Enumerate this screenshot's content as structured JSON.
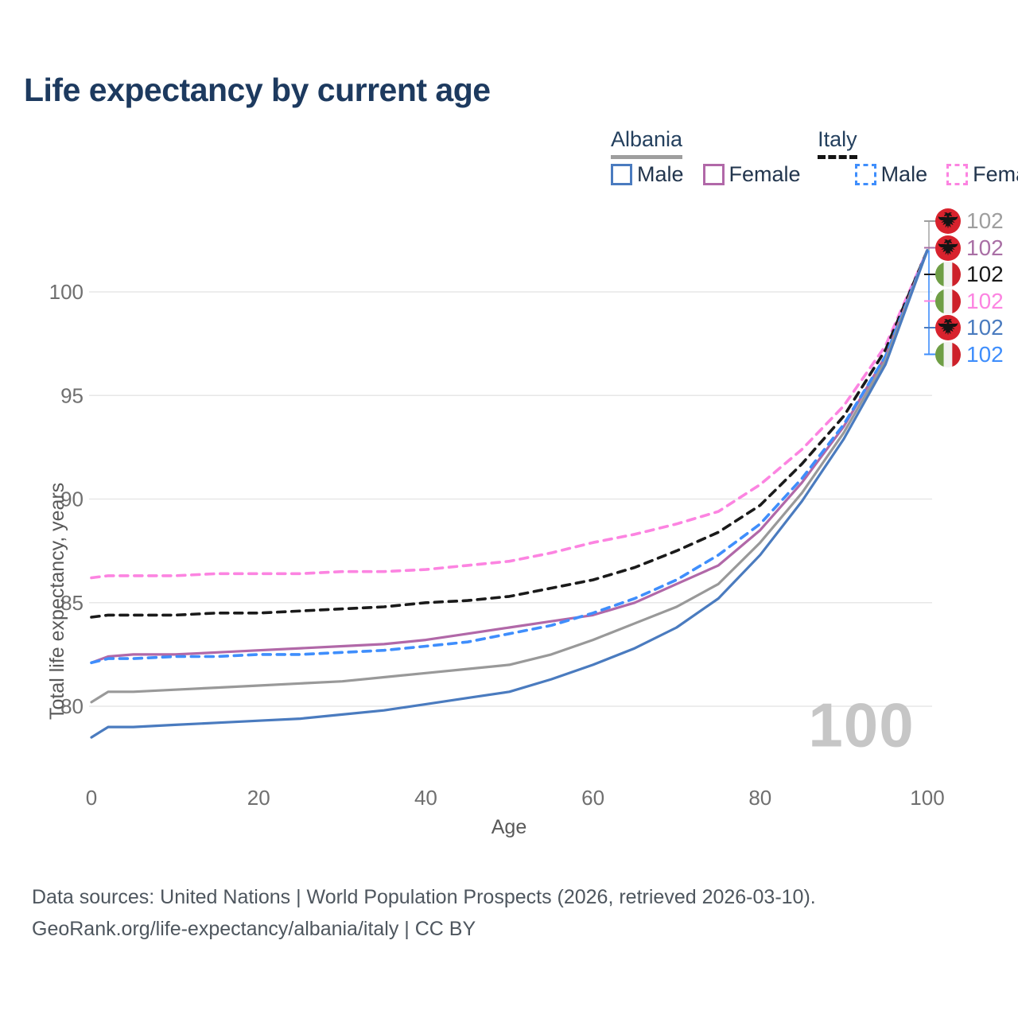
{
  "title": "Life expectancy by current age",
  "legend": {
    "groups": [
      {
        "label": "Albania",
        "line_style": "solid",
        "underline_color": "#9e9e9e",
        "items": [
          {
            "label": "Male",
            "color": "#4a7bbf",
            "dash": false
          },
          {
            "label": "Female",
            "color": "#b168a8",
            "dash": false
          }
        ]
      },
      {
        "label": "Italy",
        "line_style": "dashed",
        "underline_color": "#141414",
        "items": [
          {
            "label": "Male",
            "color": "#3f8efc",
            "dash": true
          },
          {
            "label": "Female",
            "color": "#fc84e1",
            "dash": true
          }
        ]
      }
    ]
  },
  "chart_data": {
    "type": "line",
    "title": "Life expectancy by current age",
    "xlabel": "Age",
    "ylabel": "Total life expectancy, years",
    "xlim": [
      0,
      100
    ],
    "ylim": [
      78,
      102.5
    ],
    "x_ticks": [
      0,
      20,
      40,
      60,
      80,
      100
    ],
    "y_ticks": [
      80,
      85,
      90,
      95,
      100
    ],
    "grid": "horizontal",
    "legend_position": "top-right",
    "ages": [
      0,
      2,
      5,
      10,
      15,
      20,
      25,
      30,
      35,
      40,
      45,
      50,
      55,
      60,
      65,
      70,
      75,
      80,
      85,
      90,
      95,
      100
    ],
    "series": [
      {
        "name": "Italy Female",
        "country": "italy",
        "sex": "female",
        "color": "#fc84e1",
        "dash": true,
        "values": [
          86.2,
          86.3,
          86.3,
          86.3,
          86.4,
          86.4,
          86.4,
          86.5,
          86.5,
          86.6,
          86.8,
          87.0,
          87.4,
          87.9,
          88.3,
          88.8,
          89.4,
          90.7,
          92.4,
          94.5,
          97.4,
          102
        ]
      },
      {
        "name": "Italy Both sexes",
        "country": "italy",
        "sex": "both",
        "color": "#1a1a1a",
        "dash": true,
        "values": [
          84.3,
          84.4,
          84.4,
          84.4,
          84.5,
          84.5,
          84.6,
          84.7,
          84.8,
          85.0,
          85.1,
          85.3,
          85.7,
          86.1,
          86.7,
          87.5,
          88.4,
          89.7,
          91.7,
          94.0,
          97.2,
          102
        ]
      },
      {
        "name": "Albania Female",
        "country": "albania",
        "sex": "female",
        "color": "#b168a8",
        "dash": false,
        "values": [
          82.1,
          82.4,
          82.5,
          82.5,
          82.6,
          82.7,
          82.8,
          82.9,
          83.0,
          83.2,
          83.5,
          83.8,
          84.1,
          84.4,
          85.0,
          85.9,
          86.8,
          88.5,
          90.8,
          93.5,
          96.9,
          102
        ]
      },
      {
        "name": "Italy Male",
        "country": "italy",
        "sex": "male",
        "color": "#3f8efc",
        "dash": true,
        "values": [
          82.1,
          82.3,
          82.3,
          82.4,
          82.4,
          82.5,
          82.5,
          82.6,
          82.7,
          82.9,
          83.1,
          83.5,
          83.9,
          84.5,
          85.2,
          86.1,
          87.3,
          88.8,
          91.0,
          93.6,
          96.9,
          102
        ]
      },
      {
        "name": "Albania Both sexes",
        "country": "albania",
        "sex": "both",
        "color": "#999999",
        "dash": false,
        "values": [
          80.2,
          80.7,
          80.7,
          80.8,
          80.9,
          81.0,
          81.1,
          81.2,
          81.4,
          81.6,
          81.8,
          82.0,
          82.5,
          83.2,
          84.0,
          84.8,
          85.9,
          87.9,
          90.3,
          93.2,
          96.7,
          102
        ]
      },
      {
        "name": "Albania Male",
        "country": "albania",
        "sex": "male",
        "color": "#4a7bbf",
        "dash": false,
        "values": [
          78.5,
          79.0,
          79.0,
          79.1,
          79.2,
          79.3,
          79.4,
          79.6,
          79.8,
          80.1,
          80.4,
          80.7,
          81.3,
          82.0,
          82.8,
          83.8,
          85.2,
          87.3,
          89.9,
          92.9,
          96.5,
          102
        ]
      }
    ],
    "end_labels": [
      {
        "series": "Albania Both sexes",
        "flag": "albania",
        "value": "102",
        "color": "#9e9e9e"
      },
      {
        "series": "Albania Female",
        "flag": "albania",
        "value": "102",
        "color": "#a96fa5"
      },
      {
        "series": "Italy Both sexes",
        "flag": "italy",
        "value": "102",
        "color": "#1a1a1a"
      },
      {
        "series": "Italy Female",
        "flag": "italy",
        "value": "102",
        "color": "#fc84e1"
      },
      {
        "series": "Albania Male",
        "flag": "albania",
        "value": "102",
        "color": "#4a7bbf"
      },
      {
        "series": "Italy Male",
        "flag": "italy",
        "value": "102",
        "color": "#3f8efc"
      }
    ],
    "current_age_watermark": "100"
  },
  "flags": {
    "albania": {
      "background": "#d8222d",
      "emblem": "#141414"
    },
    "italy": {
      "green": "#6f9e45",
      "white": "#f2f2f2",
      "red": "#cd212a"
    }
  },
  "axis": {
    "x_label": "Age",
    "y_label": "Total life expectancy, years"
  },
  "footer": {
    "line1": "Data sources: United Nations | World Population Prospects (2026, retrieved 2026-03-10).",
    "line2": "GeoRank.org/life-expectancy/albania/italy | CC BY"
  }
}
